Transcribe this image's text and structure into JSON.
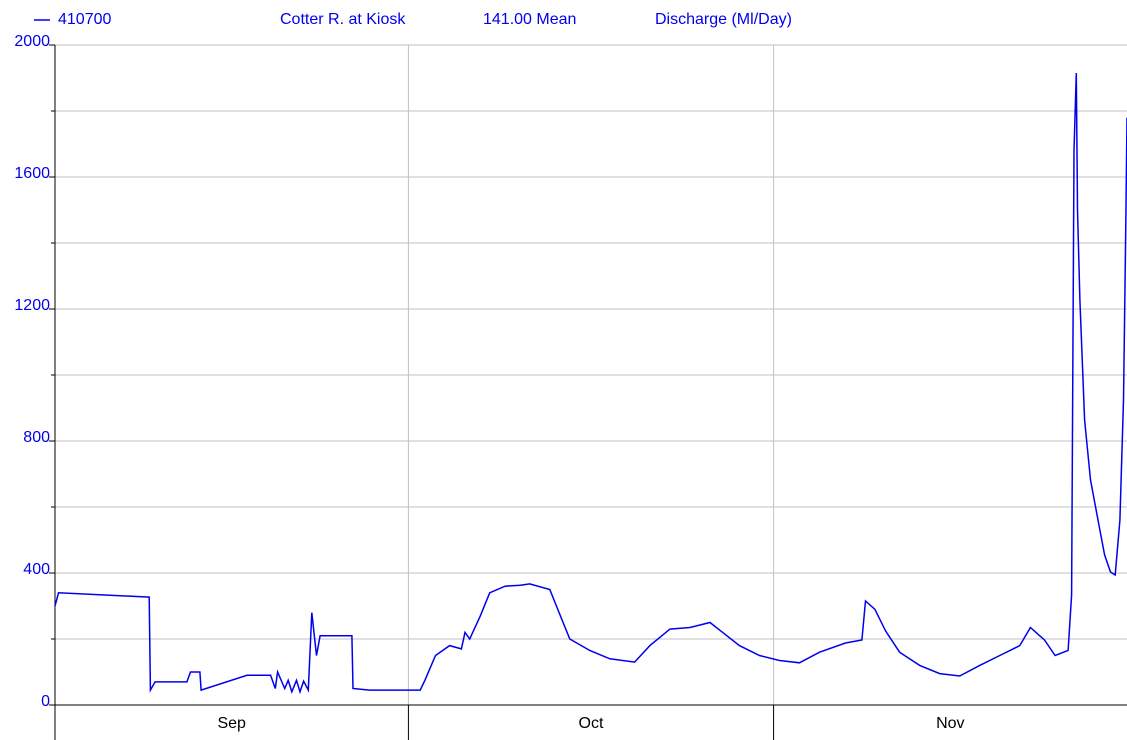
{
  "chart_data": {
    "type": "line",
    "station": "Cotter R. at Kiosk",
    "statistic": "141.00 Mean",
    "ylabel": "Discharge (Ml/Day)",
    "xlim": [
      0,
      91
    ],
    "months": [
      {
        "label": "Sep",
        "start": 0,
        "end": 30
      },
      {
        "label": "Oct",
        "start": 30,
        "end": 61
      },
      {
        "label": "Nov",
        "start": 61,
        "end": 91
      }
    ],
    "ylim": [
      0,
      2000
    ],
    "yticks": [
      0,
      400,
      800,
      1200,
      1600,
      2000
    ],
    "yminor": [
      200,
      600,
      1000,
      1400,
      1800
    ],
    "grid": true,
    "series": [
      {
        "name": "410700",
        "color": "#0000ee",
        "x": [
          0,
          0.3,
          8.0,
          8.1,
          8.5,
          11.2,
          11.5,
          12.3,
          12.4,
          16.3,
          18.3,
          18.7,
          18.9,
          19.5,
          19.8,
          20.1,
          20.5,
          20.8,
          21.1,
          21.5,
          21.8,
          22.2,
          22.5,
          25.2,
          25.3,
          26.7,
          31.0,
          31.4,
          32.3,
          33.5,
          34.5,
          34.8,
          35.2,
          36.1,
          36.9,
          38.2,
          39.5,
          40.3,
          42.0,
          42.9,
          43.7,
          45.4,
          47.1,
          49.2,
          50.5,
          52.2,
          53.9,
          55.6,
          56.5,
          58.1,
          59.8,
          61.5,
          63.2,
          64.9,
          67.1,
          68.5,
          68.8,
          69.6,
          70.5,
          71.7,
          73.4,
          75.1,
          76.8,
          78.5,
          80.2,
          81.9,
          82.8,
          84.0,
          84.9,
          86.0,
          86.3,
          86.5,
          86.7,
          86.8,
          87.0,
          87.4,
          87.9,
          88.3,
          88.7,
          89.1,
          89.6,
          90.0,
          90.4,
          90.7,
          90.9,
          91.0
        ],
        "values": [
          300,
          340,
          327,
          45,
          70,
          70,
          100,
          100,
          45,
          90,
          90,
          50,
          100,
          50,
          75,
          40,
          75,
          40,
          72,
          45,
          280,
          150,
          210,
          210,
          50,
          45,
          45,
          75,
          150,
          180,
          170,
          220,
          200,
          270,
          340,
          360,
          363,
          367,
          350,
          270,
          200,
          165,
          140,
          130,
          180,
          230,
          235,
          250,
          225,
          180,
          150,
          135,
          128,
          160,
          188,
          197,
          315,
          290,
          225,
          160,
          120,
          95,
          88,
          120,
          150,
          180,
          235,
          197,
          150,
          165,
          333,
          1680,
          1915,
          1500,
          1227,
          864,
          682,
          606,
          530,
          455,
          403,
          394,
          560,
          924,
          1455,
          1780
        ]
      }
    ]
  }
}
